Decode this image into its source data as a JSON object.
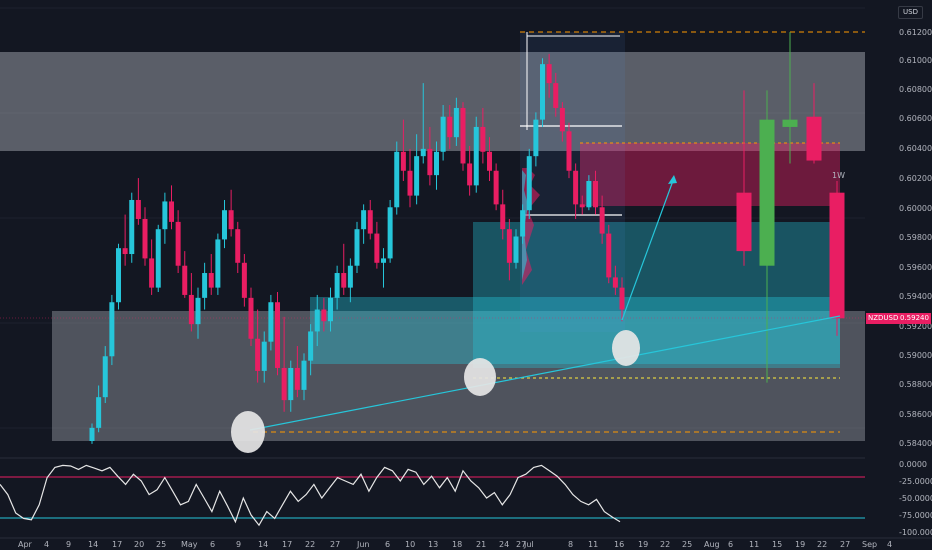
{
  "header": {
    "currency": "USD"
  },
  "chart_data": {
    "type": "candlestick",
    "symbol": "NZDUSD",
    "last_price": "0.59240",
    "timeframe_tag": "1W",
    "y_ticks": [
      "0.61200",
      "0.61000",
      "0.60800",
      "0.60600",
      "0.60400",
      "0.60200",
      "0.60000",
      "0.59800",
      "0.59600",
      "0.59400",
      "0.59200",
      "0.59000",
      "0.58800",
      "0.58600",
      "0.58400"
    ],
    "x_ticks": [
      "Apr",
      "4",
      "9",
      "14",
      "17",
      "20",
      "25",
      "May",
      "6",
      "9",
      "14",
      "17",
      "22",
      "27",
      "Jun",
      "6",
      "10",
      "13",
      "18",
      "21",
      "24",
      "27",
      "Jul",
      "8",
      "11",
      "16",
      "19",
      "22",
      "25",
      "Aug",
      "6",
      "11",
      "15",
      "19",
      "22",
      "27",
      "Sep",
      "4"
    ],
    "rsi_ticks": [
      "0.0000",
      "-25.0000",
      "-50.0000",
      "-75.0000",
      "-100.0000"
    ],
    "colors": {
      "up": "#26c6da",
      "down": "#e91e63",
      "background": "#131722",
      "zone_gray": "#b2b5be",
      "zone_cyan": "#26c6da",
      "zone_red": "#e91e63",
      "level": "#ff9800"
    },
    "daily_candles": [
      [
        0.584,
        0.5852,
        0.5838,
        0.5849
      ],
      [
        0.5849,
        0.5878,
        0.5846,
        0.587
      ],
      [
        0.587,
        0.5905,
        0.5866,
        0.5898
      ],
      [
        0.5898,
        0.594,
        0.5892,
        0.5935
      ],
      [
        0.5935,
        0.5975,
        0.593,
        0.5972
      ],
      [
        0.5972,
        0.5995,
        0.596,
        0.5968
      ],
      [
        0.5968,
        0.601,
        0.5962,
        0.6005
      ],
      [
        0.6005,
        0.602,
        0.5988,
        0.5992
      ],
      [
        0.5992,
        0.6,
        0.596,
        0.5965
      ],
      [
        0.5965,
        0.5978,
        0.594,
        0.5945
      ],
      [
        0.5945,
        0.5988,
        0.5942,
        0.5985
      ],
      [
        0.5985,
        0.601,
        0.5975,
        0.6004
      ],
      [
        0.6004,
        0.6015,
        0.5985,
        0.599
      ],
      [
        0.599,
        0.5998,
        0.5955,
        0.596
      ],
      [
        0.596,
        0.597,
        0.5938,
        0.594
      ],
      [
        0.594,
        0.5955,
        0.5915,
        0.592
      ],
      [
        0.592,
        0.5945,
        0.591,
        0.5938
      ],
      [
        0.5938,
        0.5962,
        0.593,
        0.5955
      ],
      [
        0.5955,
        0.5968,
        0.594,
        0.5945
      ],
      [
        0.5945,
        0.5982,
        0.594,
        0.5978
      ],
      [
        0.5978,
        0.6005,
        0.5972,
        0.5998
      ],
      [
        0.5998,
        0.6012,
        0.598,
        0.5985
      ],
      [
        0.5985,
        0.599,
        0.5955,
        0.5962
      ],
      [
        0.5962,
        0.5968,
        0.5932,
        0.5938
      ],
      [
        0.5938,
        0.5945,
        0.5905,
        0.591
      ],
      [
        0.591,
        0.593,
        0.588,
        0.5888
      ],
      [
        0.5888,
        0.5915,
        0.588,
        0.5908
      ],
      [
        0.5908,
        0.594,
        0.5902,
        0.5935
      ],
      [
        0.5935,
        0.5942,
        0.5885,
        0.589
      ],
      [
        0.589,
        0.5925,
        0.586,
        0.5868
      ],
      [
        0.5868,
        0.5895,
        0.586,
        0.589
      ],
      [
        0.589,
        0.5905,
        0.587,
        0.5875
      ],
      [
        0.5875,
        0.59,
        0.5868,
        0.5895
      ],
      [
        0.5895,
        0.592,
        0.5885,
        0.5915
      ],
      [
        0.5915,
        0.594,
        0.5905,
        0.593
      ],
      [
        0.593,
        0.5938,
        0.5915,
        0.5922
      ],
      [
        0.5922,
        0.5945,
        0.5915,
        0.5938
      ],
      [
        0.5938,
        0.596,
        0.593,
        0.5955
      ],
      [
        0.5955,
        0.5975,
        0.594,
        0.5945
      ],
      [
        0.5945,
        0.5965,
        0.5935,
        0.596
      ],
      [
        0.596,
        0.599,
        0.5955,
        0.5985
      ],
      [
        0.5985,
        0.6002,
        0.5975,
        0.5998
      ],
      [
        0.5998,
        0.6005,
        0.5978,
        0.5982
      ],
      [
        0.5982,
        0.599,
        0.5958,
        0.5962
      ],
      [
        0.5962,
        0.5972,
        0.5945,
        0.5965
      ],
      [
        0.5965,
        0.6005,
        0.5962,
        0.6
      ],
      [
        0.6,
        0.6045,
        0.5995,
        0.6038
      ],
      [
        0.6038,
        0.606,
        0.6018,
        0.6025
      ],
      [
        0.6025,
        0.604,
        0.6,
        0.6008
      ],
      [
        0.6008,
        0.605,
        0.6002,
        0.6035
      ],
      [
        0.6035,
        0.6085,
        0.603,
        0.604
      ],
      [
        0.604,
        0.6055,
        0.6015,
        0.6022
      ],
      [
        0.6022,
        0.6045,
        0.6012,
        0.6038
      ],
      [
        0.6038,
        0.607,
        0.6032,
        0.6062
      ],
      [
        0.6062,
        0.607,
        0.604,
        0.6048
      ],
      [
        0.6048,
        0.6075,
        0.6042,
        0.6068
      ],
      [
        0.6068,
        0.6072,
        0.6025,
        0.603
      ],
      [
        0.603,
        0.6042,
        0.6008,
        0.6015
      ],
      [
        0.6015,
        0.6062,
        0.601,
        0.6055
      ],
      [
        0.6055,
        0.6068,
        0.603,
        0.6038
      ],
      [
        0.6038,
        0.6048,
        0.6018,
        0.6025
      ],
      [
        0.6025,
        0.603,
        0.5998,
        0.6002
      ],
      [
        0.6002,
        0.6012,
        0.5978,
        0.5985
      ],
      [
        0.5985,
        0.5992,
        0.595,
        0.5962
      ],
      [
        0.5962,
        0.5985,
        0.5958,
        0.598
      ],
      [
        0.598,
        0.6002,
        0.5975,
        0.5998
      ],
      [
        0.5998,
        0.604,
        0.5992,
        0.6035
      ],
      [
        0.6035,
        0.6065,
        0.6028,
        0.606
      ],
      [
        0.606,
        0.6102,
        0.6055,
        0.6098
      ],
      [
        0.6098,
        0.6105,
        0.6075,
        0.6085
      ],
      [
        0.6085,
        0.6092,
        0.6062,
        0.6068
      ],
      [
        0.6068,
        0.6072,
        0.6045,
        0.6052
      ],
      [
        0.6052,
        0.6058,
        0.602,
        0.6025
      ],
      [
        0.6025,
        0.603,
        0.5992,
        0.6002
      ],
      [
        0.6002,
        0.6008,
        0.5995,
        0.6
      ],
      [
        0.6,
        0.6022,
        0.5998,
        0.6018
      ],
      [
        0.6018,
        0.6025,
        0.5995,
        0.6
      ],
      [
        0.6,
        0.6008,
        0.5975,
        0.5982
      ],
      [
        0.5982,
        0.5988,
        0.5948,
        0.5952
      ],
      [
        0.5952,
        0.596,
        0.594,
        0.5945
      ],
      [
        0.5945,
        0.5952,
        0.5922,
        0.593
      ]
    ],
    "weekly_candles": [
      [
        0.601,
        0.608,
        0.596,
        0.597
      ],
      [
        0.596,
        0.608,
        0.588,
        0.606
      ],
      [
        0.606,
        0.612,
        0.603,
        0.6055
      ],
      [
        0.6062,
        0.6085,
        0.603,
        0.6032
      ],
      [
        0.601,
        0.6018,
        0.5912,
        0.5924
      ]
    ],
    "rsi": [
      -30,
      -45,
      -72,
      -80,
      -82,
      -60,
      -20,
      -5,
      -2,
      -3,
      -8,
      -2,
      -6,
      -10,
      -5,
      -18,
      -30,
      -15,
      -25,
      -45,
      -38,
      -20,
      -40,
      -60,
      -55,
      -30,
      -50,
      -70,
      -40,
      -62,
      -85,
      -50,
      -75,
      -90,
      -70,
      -80,
      -60,
      -40,
      -55,
      -45,
      -30,
      -50,
      -35,
      -20,
      -25,
      -30,
      -15,
      -40,
      -20,
      -5,
      -10,
      -25,
      -8,
      -12,
      -30,
      -18,
      -35,
      -20,
      -40,
      -10,
      -25,
      -35,
      -50,
      -42,
      -60,
      -45,
      -20,
      -15,
      -5,
      -2,
      -10,
      -18,
      -30,
      -45,
      -55,
      -60,
      -52,
      -70,
      -78,
      -85
    ]
  }
}
